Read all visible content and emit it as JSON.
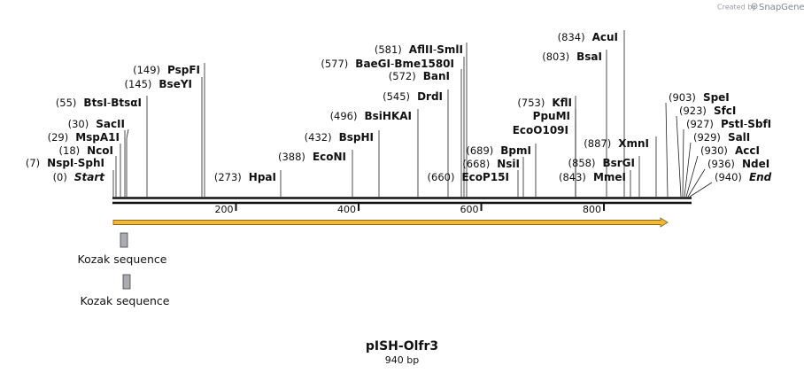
{
  "credit": {
    "prefix": "Created by",
    "brand": "SnapGene"
  },
  "map": {
    "title": "pISH-Olfr3",
    "subtitle": "940 bp",
    "length": 940,
    "ticks": [
      200,
      400,
      600,
      800
    ]
  },
  "sites": [
    {
      "pos": "(0)",
      "names": [
        "Start"
      ],
      "italic": true,
      "bp": 0
    },
    {
      "pos": "(7)",
      "names": [
        "NspI",
        "SphI"
      ],
      "bp": 7
    },
    {
      "pos": "(18)",
      "names": [
        "NcoI"
      ],
      "bp": 18
    },
    {
      "pos": "(29)",
      "names": [
        "MspA1I"
      ],
      "bp": 29
    },
    {
      "pos": "(30)",
      "names": [
        "SacII"
      ],
      "bp": 30
    },
    {
      "pos": "(55)",
      "names": [
        "BtsI",
        "BtsαI"
      ],
      "bp": 55
    },
    {
      "pos": "(145)",
      "names": [
        "BseYI"
      ],
      "bp": 145
    },
    {
      "pos": "(149)",
      "names": [
        "PspFI"
      ],
      "bp": 149
    },
    {
      "pos": "(273)",
      "names": [
        "HpaI"
      ],
      "bp": 273
    },
    {
      "pos": "(388)",
      "names": [
        "EcoNI"
      ],
      "bp": 388
    },
    {
      "pos": "(432)",
      "names": [
        "BspHI"
      ],
      "bp": 432
    },
    {
      "pos": "(496)",
      "names": [
        "BsiHKAI"
      ],
      "bp": 496
    },
    {
      "pos": "(545)",
      "names": [
        "DrdI"
      ],
      "bp": 545
    },
    {
      "pos": "(572)",
      "names": [
        "BanI"
      ],
      "bp": 572
    },
    {
      "pos": "(577)",
      "names": [
        "BaeGI",
        "Bme1580I"
      ],
      "bp": 577
    },
    {
      "pos": "(581)",
      "names": [
        "AflII",
        "SmlI"
      ],
      "bp": 581
    },
    {
      "pos": "(660)",
      "names": [
        "EcoP15I"
      ],
      "bp": 660
    },
    {
      "pos": "(668)",
      "names": [
        "NsiI"
      ],
      "bp": 668
    },
    {
      "pos": "(689)",
      "names": [
        "BpmI"
      ],
      "bp": 689
    },
    {
      "pos": "",
      "names": [
        "EcoO109I"
      ],
      "bp": 753
    },
    {
      "pos": "",
      "names": [
        "PpuMI"
      ],
      "bp": 753
    },
    {
      "pos": "(753)",
      "names": [
        "KflI"
      ],
      "bp": 753
    },
    {
      "pos": "(803)",
      "names": [
        "BsaI"
      ],
      "bp": 803
    },
    {
      "pos": "(834)",
      "names": [
        "AcuI"
      ],
      "bp": 834
    },
    {
      "pos": "(843)",
      "names": [
        "MmeI"
      ],
      "bp": 843
    },
    {
      "pos": "(858)",
      "names": [
        "BsrGI"
      ],
      "bp": 858
    },
    {
      "pos": "(887)",
      "names": [
        "XmnI"
      ],
      "bp": 887
    },
    {
      "pos": "(903)",
      "names": [
        "SpeI"
      ],
      "bp": 903
    },
    {
      "pos": "(923)",
      "names": [
        "SfcI"
      ],
      "bp": 923
    },
    {
      "pos": "(927)",
      "names": [
        "PstI",
        "SbfI"
      ],
      "bp": 927
    },
    {
      "pos": "(929)",
      "names": [
        "SalI"
      ],
      "bp": 929
    },
    {
      "pos": "(930)",
      "names": [
        "AccI"
      ],
      "bp": 930
    },
    {
      "pos": "(936)",
      "names": [
        "NdeI"
      ],
      "bp": 936
    },
    {
      "pos": "(940)",
      "names": [
        "End"
      ],
      "italic": true,
      "bp": 940
    }
  ],
  "features": [
    {
      "label": "Kozak sequence"
    },
    {
      "label": "Kozak sequence"
    }
  ],
  "colors": {
    "backbone": "#111111",
    "arrow_fill": "#f7b733",
    "arrow_stroke": "#8a6a1a",
    "feature_fill": "#a9acb1",
    "leader": "#222222"
  }
}
